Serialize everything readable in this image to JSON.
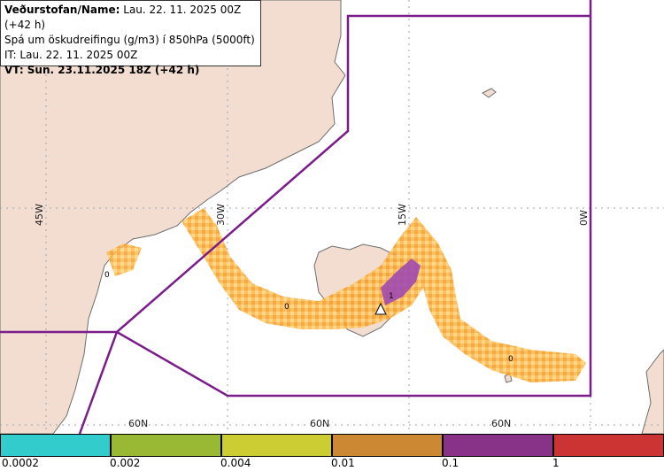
{
  "header": {
    "line1_label": "Veðurstofan/Name:",
    "line1_value": "Lau. 22. 11. 2025 00Z (+42 h)",
    "line2": "Spá um öskudreifingu (g/m3) í 850hPa (5000ft)",
    "line3": "IT: Lau. 22. 11. 2025 00Z",
    "line4": "VT: Sun. 23.11.2025 18Z (+42 h)"
  },
  "map": {
    "meridian_labels": [
      "45W",
      "30W",
      "15W",
      "0W"
    ],
    "parallel_labels": [
      "60N",
      "60N",
      "60N"
    ],
    "contour_labels": [
      "0",
      "0",
      "0",
      "1"
    ]
  },
  "legend": {
    "labels": [
      "0.0002",
      "0.002",
      "0.004",
      "0.01",
      "0.1",
      "1"
    ],
    "colors": [
      "#33cccc",
      "#99b833",
      "#cccc33",
      "#cc8833",
      "#883388",
      "#cc3333"
    ]
  }
}
